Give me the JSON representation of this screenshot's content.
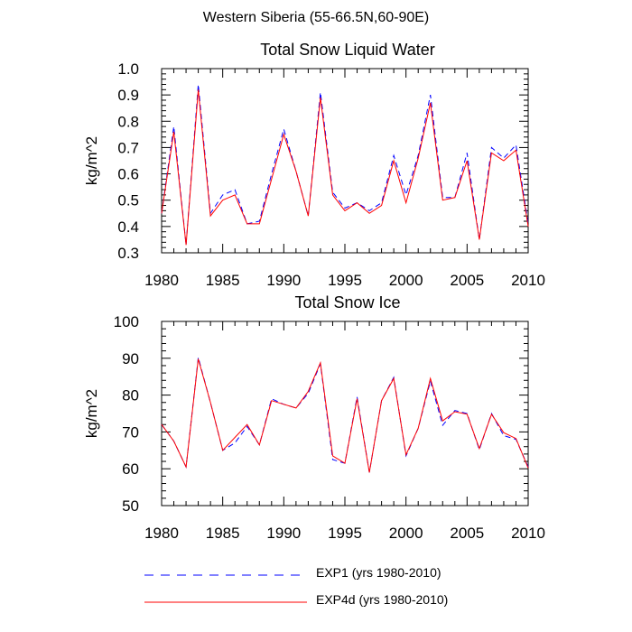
{
  "figure": {
    "title": "Western Siberia (55-66.5N,60-90E)"
  },
  "legend": [
    {
      "label": "EXP1 (yrs 1980-2010)",
      "color": "#0000ff",
      "dash": "dashed"
    },
    {
      "label": "EXP4d (yrs 1980-2010)",
      "color": "#ff0000",
      "dash": "solid"
    }
  ],
  "chart_data": [
    {
      "type": "line",
      "title": "Total Snow Liquid Water",
      "xlabel": "",
      "ylabel": "kg/m^2",
      "xlim": [
        1980,
        2010
      ],
      "ylim": [
        0.3,
        1.0
      ],
      "xticks": [
        1980,
        1985,
        1990,
        1995,
        2000,
        2005,
        2010
      ],
      "yticks": [
        0.3,
        0.4,
        0.5,
        0.6,
        0.7,
        0.8,
        0.9,
        1.0
      ],
      "ytick_labels": [
        "0.3",
        "0.4",
        "0.5",
        "0.6",
        "0.7",
        "0.8",
        "0.9",
        "1.0"
      ],
      "grid": false,
      "x": [
        1980,
        1981,
        1982,
        1983,
        1984,
        1985,
        1986,
        1987,
        1988,
        1989,
        1990,
        1991,
        1992,
        1993,
        1994,
        1995,
        1996,
        1997,
        1998,
        1999,
        2000,
        2001,
        2002,
        2003,
        2004,
        2005,
        2006,
        2007,
        2008,
        2009,
        2010
      ],
      "series": [
        {
          "name": "EXP1 (yrs 1980-2010)",
          "color": "#0000ff",
          "dash": "dashed",
          "values": [
            0.45,
            0.78,
            0.33,
            0.94,
            0.45,
            0.52,
            0.54,
            0.41,
            0.42,
            0.6,
            0.77,
            0.61,
            0.44,
            0.91,
            0.53,
            0.47,
            0.49,
            0.46,
            0.49,
            0.67,
            0.52,
            0.67,
            0.9,
            0.51,
            0.51,
            0.68,
            0.35,
            0.7,
            0.66,
            0.71,
            0.41
          ]
        },
        {
          "name": "EXP4d (yrs 1980-2010)",
          "color": "#ff0000",
          "dash": "solid",
          "values": [
            0.45,
            0.76,
            0.33,
            0.92,
            0.44,
            0.5,
            0.52,
            0.41,
            0.41,
            0.58,
            0.75,
            0.61,
            0.44,
            0.89,
            0.52,
            0.46,
            0.49,
            0.45,
            0.48,
            0.65,
            0.49,
            0.66,
            0.87,
            0.5,
            0.51,
            0.65,
            0.35,
            0.68,
            0.65,
            0.69,
            0.4
          ]
        }
      ]
    },
    {
      "type": "line",
      "title": "Total Snow Ice",
      "xlabel": "",
      "ylabel": "kg/m^2",
      "xlim": [
        1980,
        2010
      ],
      "ylim": [
        50,
        100
      ],
      "xticks": [
        1980,
        1985,
        1990,
        1995,
        2000,
        2005,
        2010
      ],
      "yticks": [
        50,
        60,
        70,
        80,
        90,
        100
      ],
      "ytick_labels": [
        "50",
        "60",
        "70",
        "80",
        "90",
        "100"
      ],
      "grid": false,
      "x": [
        1980,
        1981,
        1982,
        1983,
        1984,
        1985,
        1986,
        1987,
        1988,
        1989,
        1990,
        1991,
        1992,
        1993,
        1994,
        1995,
        1996,
        1997,
        1998,
        1999,
        2000,
        2001,
        2002,
        2003,
        2004,
        2005,
        2006,
        2007,
        2008,
        2009,
        2010
      ],
      "series": [
        {
          "name": "EXP1 (yrs 1980-2010)",
          "color": "#0000ff",
          "dash": "dashed",
          "values": [
            72.0,
            67.5,
            60.5,
            90.2,
            78.0,
            65.0,
            67.0,
            71.5,
            66.5,
            79.0,
            77.5,
            76.5,
            80.5,
            88.5,
            62.5,
            61.5,
            79.5,
            59.0,
            78.5,
            84.8,
            63.5,
            71.0,
            83.8,
            71.8,
            75.8,
            75.0,
            65.2,
            75.0,
            69.0,
            68.0,
            60.5
          ]
        },
        {
          "name": "EXP4d (yrs 1980-2010)",
          "color": "#ff0000",
          "dash": "solid",
          "values": [
            72.0,
            67.5,
            60.5,
            89.8,
            78.0,
            65.0,
            68.5,
            72.0,
            66.5,
            78.5,
            77.5,
            76.5,
            81.0,
            88.8,
            63.5,
            61.5,
            79.0,
            59.0,
            78.5,
            84.5,
            63.8,
            71.0,
            84.5,
            73.0,
            75.5,
            74.8,
            65.5,
            74.8,
            69.8,
            68.2,
            60.2
          ]
        }
      ]
    }
  ]
}
